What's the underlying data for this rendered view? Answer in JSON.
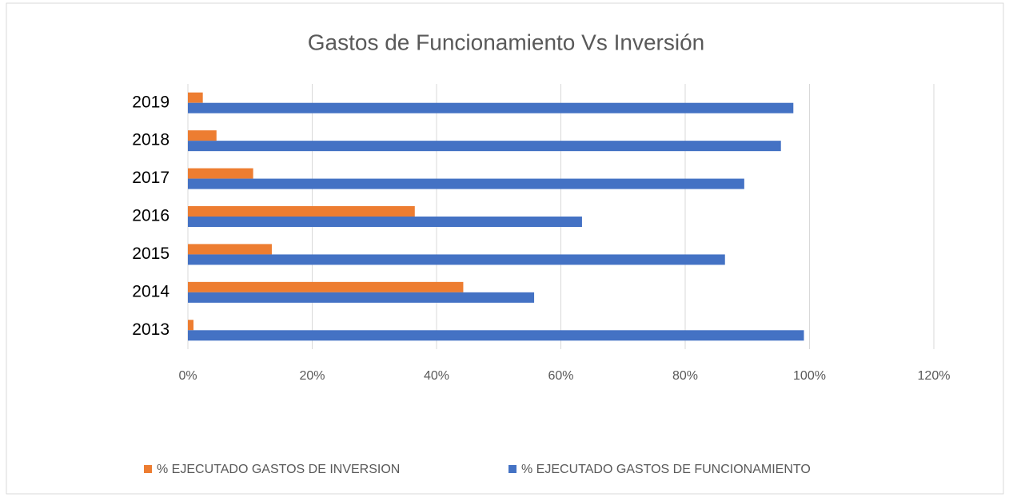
{
  "chart_data": {
    "type": "hbar",
    "title": "Gastos de Funcionamiento Vs Inversión",
    "categories": [
      "2013",
      "2014",
      "2015",
      "2016",
      "2017",
      "2018",
      "2019"
    ],
    "series": [
      {
        "name": "% EJECUTADO GASTOS DE INVERSION",
        "color": "#ed7d31",
        "values": [
          0.9,
          44.3,
          13.5,
          36.5,
          10.5,
          4.6,
          2.4
        ]
      },
      {
        "name": "% EJECUTADO GASTOS DE FUNCIONAMIENTO",
        "color": "#4472c4",
        "values": [
          99.1,
          55.7,
          86.4,
          63.4,
          89.5,
          95.4,
          97.4
        ]
      }
    ],
    "xlim": [
      0,
      120
    ],
    "xticks": [
      {
        "value": 0,
        "label": "0%"
      },
      {
        "value": 20,
        "label": "20%"
      },
      {
        "value": 40,
        "label": "40%"
      },
      {
        "value": 60,
        "label": "60%"
      },
      {
        "value": 80,
        "label": "80%"
      },
      {
        "value": 100,
        "label": "100%"
      },
      {
        "value": 120,
        "label": "120%"
      }
    ],
    "grid": true,
    "legend": "bottom"
  }
}
